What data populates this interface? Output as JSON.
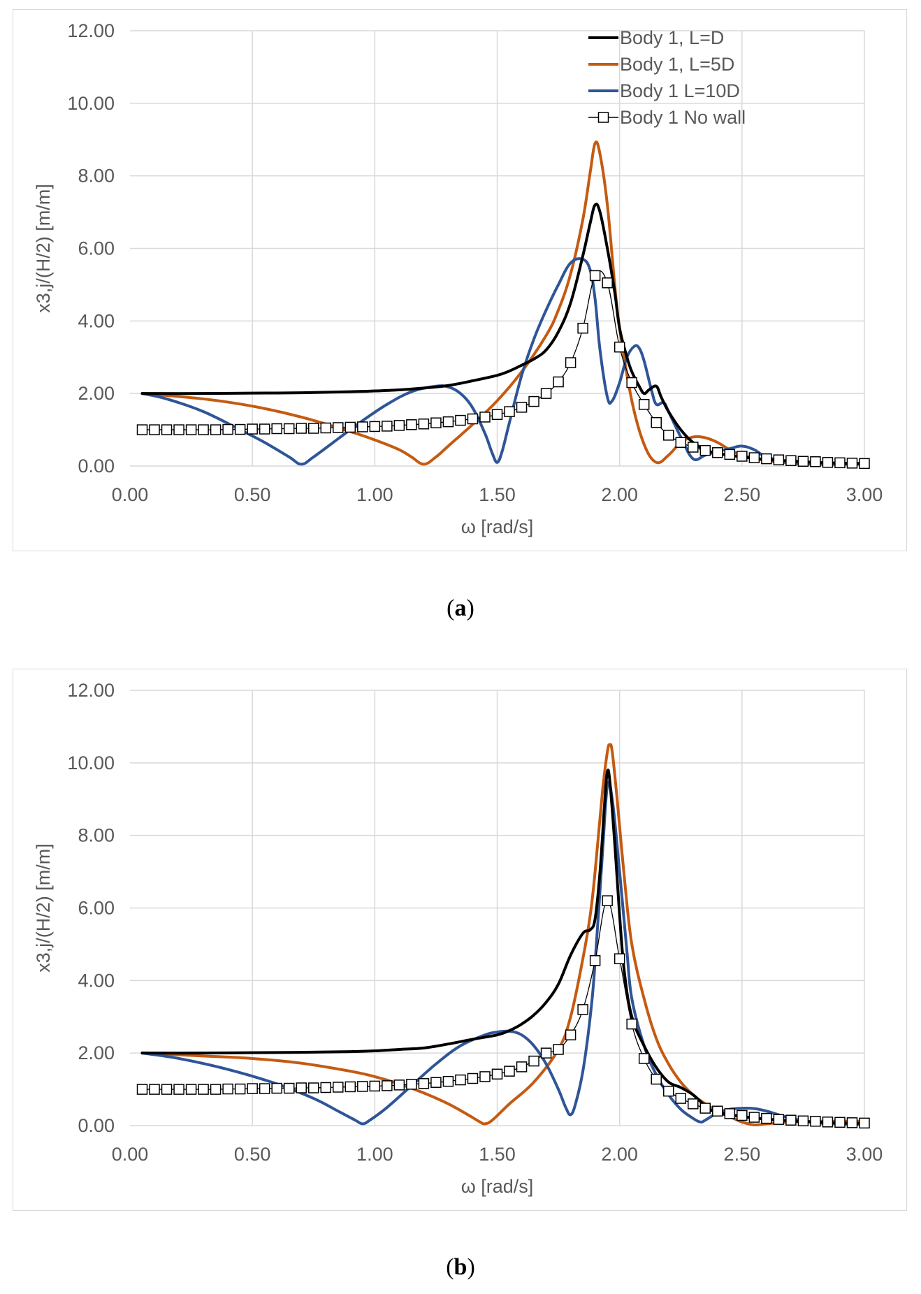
{
  "chart_data": [
    {
      "type": "line",
      "panel_label": "a",
      "xlabel": "ω  [rad/s]",
      "ylabel": "x3,j/(H/2)   [m/m]",
      "xlim": [
        0,
        3
      ],
      "ylim": [
        0,
        12
      ],
      "x_ticks": [
        "0.00",
        "0.50",
        "1.00",
        "1.50",
        "2.00",
        "2.50",
        "3.00"
      ],
      "y_ticks": [
        "0.00",
        "2.00",
        "4.00",
        "6.00",
        "8.00",
        "10.00",
        "12.00"
      ],
      "grid": true,
      "legend_position": "top-right",
      "series": [
        {
          "name": "Body 1, L=D",
          "color": "#000000",
          "marker": "none",
          "x": [
            0.05,
            0.3,
            0.5,
            0.7,
            0.9,
            1.0,
            1.1,
            1.2,
            1.3,
            1.4,
            1.5,
            1.55,
            1.6,
            1.65,
            1.7,
            1.75,
            1.8,
            1.85,
            1.88,
            1.9,
            1.92,
            1.95,
            1.98,
            2.0,
            2.03,
            2.05,
            2.08,
            2.1,
            2.12,
            2.15,
            2.17,
            2.2,
            2.25,
            2.3,
            2.35,
            2.4,
            2.5,
            2.6,
            2.7,
            2.8,
            2.9,
            3.0
          ],
          "values": [
            2.0,
            2.0,
            2.01,
            2.02,
            2.05,
            2.07,
            2.1,
            2.15,
            2.22,
            2.35,
            2.5,
            2.62,
            2.78,
            2.95,
            3.2,
            3.7,
            4.5,
            5.8,
            6.7,
            7.2,
            7.0,
            6.0,
            4.8,
            3.8,
            3.0,
            2.6,
            2.2,
            2.0,
            2.1,
            2.2,
            1.9,
            1.5,
            1.0,
            0.65,
            0.45,
            0.35,
            0.25,
            0.18,
            0.14,
            0.1,
            0.08,
            0.07
          ]
        },
        {
          "name": "Body 1, L=5D",
          "color": "#c55a11",
          "marker": "none",
          "x": [
            0.05,
            0.3,
            0.5,
            0.7,
            0.9,
            1.0,
            1.1,
            1.15,
            1.2,
            1.25,
            1.3,
            1.4,
            1.5,
            1.6,
            1.7,
            1.75,
            1.8,
            1.85,
            1.88,
            1.9,
            1.92,
            1.95,
            1.98,
            2.0,
            2.05,
            2.1,
            2.15,
            2.2,
            2.25,
            2.3,
            2.35,
            2.4,
            2.45,
            2.5,
            2.6,
            2.7,
            2.8,
            2.9,
            3.0
          ],
          "values": [
            2.0,
            1.85,
            1.65,
            1.35,
            0.95,
            0.72,
            0.45,
            0.25,
            0.05,
            0.25,
            0.55,
            1.15,
            1.8,
            2.6,
            3.6,
            4.3,
            5.3,
            6.8,
            8.1,
            8.9,
            8.6,
            7.2,
            5.0,
            3.8,
            1.8,
            0.6,
            0.1,
            0.3,
            0.65,
            0.8,
            0.78,
            0.65,
            0.45,
            0.3,
            0.15,
            0.08,
            0.05,
            0.05,
            0.05
          ]
        },
        {
          "name": "Body 1 L=10D",
          "color": "#2f5597",
          "marker": "none",
          "x": [
            0.05,
            0.15,
            0.3,
            0.45,
            0.55,
            0.65,
            0.7,
            0.75,
            0.85,
            0.95,
            1.05,
            1.15,
            1.25,
            1.3,
            1.35,
            1.4,
            1.45,
            1.48,
            1.5,
            1.52,
            1.55,
            1.6,
            1.65,
            1.7,
            1.75,
            1.8,
            1.85,
            1.88,
            1.9,
            1.92,
            1.95,
            1.97,
            2.0,
            2.03,
            2.06,
            2.08,
            2.1,
            2.13,
            2.15,
            2.18,
            2.2,
            2.25,
            2.3,
            2.35,
            2.4,
            2.45,
            2.5,
            2.55,
            2.6,
            2.7,
            2.8,
            2.9,
            3.0
          ],
          "values": [
            2.0,
            1.85,
            1.5,
            1.0,
            0.65,
            0.25,
            0.05,
            0.25,
            0.75,
            1.25,
            1.7,
            2.05,
            2.2,
            2.18,
            2.0,
            1.6,
            0.9,
            0.35,
            0.1,
            0.4,
            1.2,
            2.5,
            3.5,
            4.3,
            5.0,
            5.6,
            5.7,
            5.4,
            4.6,
            3.2,
            1.9,
            1.8,
            2.3,
            3.0,
            3.3,
            3.25,
            2.9,
            2.1,
            1.7,
            1.75,
            1.5,
            0.8,
            0.2,
            0.3,
            0.4,
            0.48,
            0.55,
            0.45,
            0.25,
            0.1,
            0.05,
            0.05,
            0.05
          ]
        },
        {
          "name": "Body 1 No wall",
          "color": "#000000",
          "marker": "square",
          "x": [
            0.05,
            0.1,
            0.15,
            0.2,
            0.25,
            0.3,
            0.35,
            0.4,
            0.45,
            0.5,
            0.55,
            0.6,
            0.65,
            0.7,
            0.75,
            0.8,
            0.85,
            0.9,
            0.95,
            1.0,
            1.05,
            1.1,
            1.15,
            1.2,
            1.25,
            1.3,
            1.35,
            1.4,
            1.45,
            1.5,
            1.55,
            1.6,
            1.65,
            1.7,
            1.75,
            1.8,
            1.85,
            1.9,
            1.95,
            2.0,
            2.05,
            2.1,
            2.15,
            2.2,
            2.25,
            2.3,
            2.35,
            2.4,
            2.45,
            2.5,
            2.55,
            2.6,
            2.65,
            2.7,
            2.75,
            2.8,
            2.85,
            2.9,
            2.95,
            3.0
          ],
          "values": [
            1.0,
            1.0,
            1.0,
            1.0,
            1.0,
            1.0,
            1.0,
            1.01,
            1.01,
            1.02,
            1.02,
            1.03,
            1.03,
            1.04,
            1.04,
            1.05,
            1.06,
            1.07,
            1.08,
            1.09,
            1.1,
            1.12,
            1.14,
            1.16,
            1.19,
            1.22,
            1.26,
            1.3,
            1.35,
            1.42,
            1.5,
            1.62,
            1.78,
            2.0,
            2.32,
            2.85,
            3.8,
            5.25,
            5.05,
            3.28,
            2.3,
            1.7,
            1.2,
            0.85,
            0.65,
            0.52,
            0.43,
            0.37,
            0.32,
            0.27,
            0.23,
            0.2,
            0.17,
            0.15,
            0.13,
            0.12,
            0.1,
            0.09,
            0.08,
            0.07
          ]
        }
      ]
    },
    {
      "type": "line",
      "panel_label": "b",
      "xlabel": "ω  [rad/s]",
      "ylabel": "x3,j/(H/2)   [m/m]",
      "xlim": [
        0,
        3
      ],
      "ylim": [
        0,
        12
      ],
      "x_ticks": [
        "0.00",
        "0.50",
        "1.00",
        "1.50",
        "2.00",
        "2.50",
        "3.00"
      ],
      "y_ticks": [
        "0.00",
        "2.00",
        "4.00",
        "6.00",
        "8.00",
        "10.00",
        "12.00"
      ],
      "grid": true,
      "legend_position": "none",
      "series": [
        {
          "name": "Body 1, L=D",
          "color": "#000000",
          "marker": "none",
          "x": [
            0.05,
            0.3,
            0.5,
            0.7,
            0.9,
            1.0,
            1.1,
            1.2,
            1.3,
            1.4,
            1.5,
            1.55,
            1.6,
            1.65,
            1.7,
            1.75,
            1.8,
            1.85,
            1.88,
            1.9,
            1.92,
            1.94,
            1.95,
            1.96,
            1.98,
            2.0,
            2.02,
            2.05,
            2.1,
            2.15,
            2.2,
            2.25,
            2.3,
            2.35,
            2.4,
            2.5,
            2.6,
            2.7,
            2.8,
            2.9,
            3.0
          ],
          "values": [
            2.0,
            2.0,
            2.01,
            2.02,
            2.04,
            2.06,
            2.1,
            2.14,
            2.25,
            2.38,
            2.5,
            2.62,
            2.8,
            3.05,
            3.4,
            3.9,
            4.7,
            5.3,
            5.4,
            5.7,
            7.0,
            9.0,
            9.75,
            9.5,
            7.8,
            5.8,
            4.2,
            3.0,
            2.2,
            1.6,
            1.2,
            1.05,
            0.85,
            0.55,
            0.35,
            0.25,
            0.18,
            0.13,
            0.1,
            0.07,
            0.06
          ]
        },
        {
          "name": "Body 1, L=5D",
          "color": "#c55a11",
          "marker": "none",
          "x": [
            0.05,
            0.3,
            0.5,
            0.7,
            0.9,
            1.0,
            1.1,
            1.2,
            1.3,
            1.38,
            1.43,
            1.45,
            1.48,
            1.55,
            1.65,
            1.75,
            1.8,
            1.85,
            1.88,
            1.9,
            1.93,
            1.95,
            1.96,
            1.97,
            1.99,
            2.02,
            2.05,
            2.1,
            2.15,
            2.2,
            2.25,
            2.3,
            2.35,
            2.4,
            2.45,
            2.5,
            2.55,
            2.6,
            2.7,
            2.8,
            2.9,
            3.0
          ],
          "values": [
            2.0,
            1.92,
            1.85,
            1.72,
            1.5,
            1.35,
            1.15,
            0.9,
            0.6,
            0.3,
            0.1,
            0.05,
            0.15,
            0.6,
            1.2,
            2.1,
            3.0,
            4.6,
            5.8,
            7.0,
            9.2,
            10.3,
            10.5,
            10.3,
            9.0,
            6.8,
            5.0,
            3.5,
            2.4,
            1.7,
            1.2,
            0.85,
            0.6,
            0.4,
            0.25,
            0.1,
            0.02,
            0.05,
            0.1,
            0.12,
            0.12,
            0.12
          ]
        },
        {
          "name": "Body 1 L=10D",
          "color": "#2f5597",
          "marker": "none",
          "x": [
            0.05,
            0.2,
            0.4,
            0.6,
            0.75,
            0.85,
            0.92,
            0.95,
            0.98,
            1.05,
            1.15,
            1.25,
            1.35,
            1.45,
            1.5,
            1.55,
            1.6,
            1.65,
            1.7,
            1.75,
            1.78,
            1.8,
            1.82,
            1.85,
            1.88,
            1.9,
            1.93,
            1.95,
            1.97,
            2.0,
            2.03,
            2.05,
            2.1,
            2.15,
            2.2,
            2.25,
            2.3,
            2.33,
            2.35,
            2.4,
            2.45,
            2.5,
            2.55,
            2.6,
            2.7,
            2.8,
            2.9,
            3.0
          ],
          "values": [
            2.0,
            1.85,
            1.55,
            1.15,
            0.75,
            0.4,
            0.15,
            0.05,
            0.15,
            0.5,
            1.1,
            1.7,
            2.2,
            2.5,
            2.58,
            2.6,
            2.5,
            2.2,
            1.7,
            1.0,
            0.5,
            0.3,
            0.6,
            1.5,
            3.0,
            4.5,
            7.5,
            9.35,
            9.0,
            7.0,
            4.8,
            3.5,
            2.2,
            1.4,
            0.85,
            0.45,
            0.2,
            0.1,
            0.15,
            0.35,
            0.45,
            0.48,
            0.47,
            0.4,
            0.2,
            0.08,
            0.05,
            0.03
          ]
        },
        {
          "name": "Body 1 No wall",
          "color": "#000000",
          "marker": "square",
          "x": [
            0.05,
            0.1,
            0.15,
            0.2,
            0.25,
            0.3,
            0.35,
            0.4,
            0.45,
            0.5,
            0.55,
            0.6,
            0.65,
            0.7,
            0.75,
            0.8,
            0.85,
            0.9,
            0.95,
            1.0,
            1.05,
            1.1,
            1.15,
            1.2,
            1.25,
            1.3,
            1.35,
            1.4,
            1.45,
            1.5,
            1.55,
            1.6,
            1.65,
            1.7,
            1.75,
            1.8,
            1.85,
            1.9,
            1.95,
            2.0,
            2.05,
            2.1,
            2.15,
            2.2,
            2.25,
            2.3,
            2.35,
            2.4,
            2.45,
            2.5,
            2.55,
            2.6,
            2.65,
            2.7,
            2.75,
            2.8,
            2.85,
            2.9,
            2.95,
            3.0
          ],
          "values": [
            1.0,
            1.0,
            1.0,
            1.0,
            1.0,
            1.0,
            1.0,
            1.01,
            1.01,
            1.02,
            1.02,
            1.03,
            1.03,
            1.04,
            1.04,
            1.05,
            1.06,
            1.07,
            1.08,
            1.09,
            1.1,
            1.12,
            1.14,
            1.16,
            1.19,
            1.22,
            1.26,
            1.3,
            1.35,
            1.42,
            1.5,
            1.62,
            1.78,
            2.0,
            2.1,
            2.5,
            3.2,
            4.55,
            6.2,
            4.6,
            2.8,
            1.85,
            1.28,
            0.95,
            0.75,
            0.6,
            0.48,
            0.4,
            0.33,
            0.28,
            0.23,
            0.2,
            0.17,
            0.15,
            0.13,
            0.12,
            0.1,
            0.09,
            0.08,
            0.07
          ]
        }
      ]
    }
  ],
  "captions": {
    "a": "a",
    "b": "b"
  }
}
